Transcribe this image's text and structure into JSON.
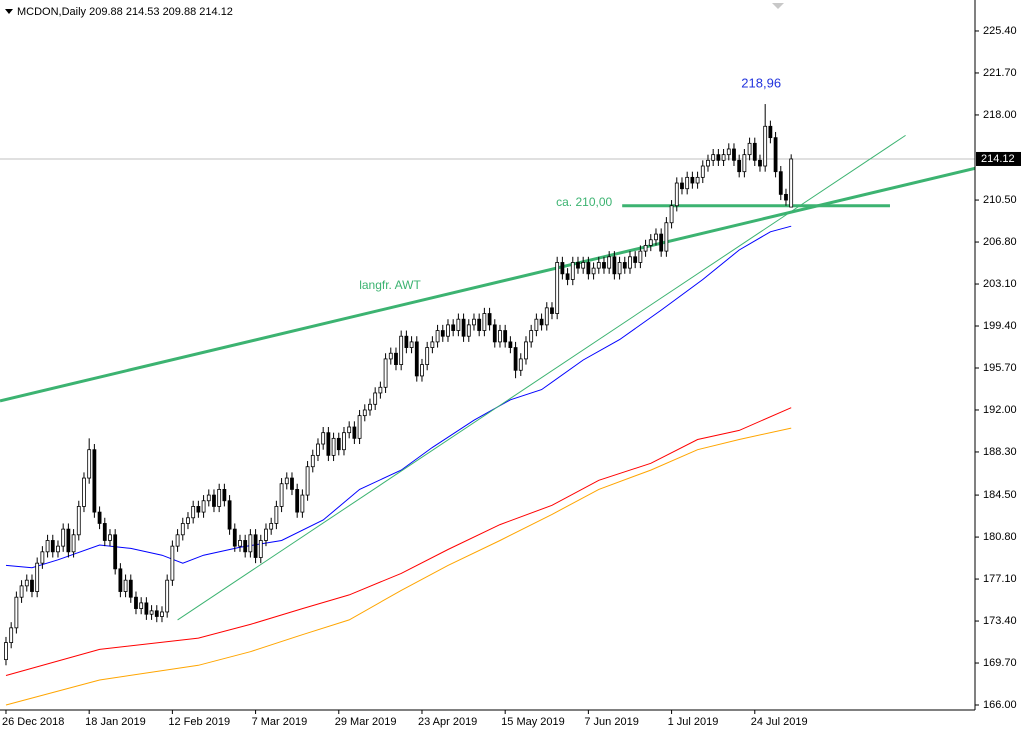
{
  "chart_data": {
    "type": "candlestick",
    "title": "MCDON,Daily",
    "categories": [
      "26 Dec 2018",
      null,
      null,
      null,
      null,
      null,
      null,
      null,
      null,
      null,
      null,
      null,
      null,
      null,
      null,
      null,
      "18 Jan 2019",
      null,
      null,
      null,
      null,
      null,
      null,
      null,
      null,
      null,
      null,
      null,
      null,
      null,
      null,
      null,
      "12 Feb 2019",
      null,
      null,
      null,
      null,
      null,
      null,
      null,
      null,
      null,
      null,
      null,
      null,
      null,
      null,
      null,
      "7 Mar 2019",
      null,
      null,
      null,
      null,
      null,
      null,
      null,
      null,
      null,
      null,
      null,
      null,
      null,
      null,
      null,
      "29 Mar 2019",
      null,
      null,
      null,
      null,
      null,
      null,
      null,
      null,
      null,
      null,
      null,
      null,
      null,
      null,
      null,
      "23 Apr 2019",
      null,
      null,
      null,
      null,
      null,
      null,
      null,
      null,
      null,
      null,
      null,
      null,
      null,
      null,
      null,
      "15 May 2019",
      null,
      null,
      null,
      null,
      null,
      null,
      null,
      null,
      null,
      null,
      null,
      null,
      null,
      null,
      null,
      "7 Jun 2019",
      null,
      null,
      null,
      null,
      null,
      null,
      null,
      null,
      null,
      null,
      null,
      null,
      null,
      null,
      null,
      "1 Jul 2019",
      null,
      null,
      null,
      null,
      null,
      null,
      null,
      null,
      null,
      null,
      null,
      null,
      null,
      null,
      null,
      "24 Jul 2019",
      null,
      null,
      null,
      null,
      null,
      null,
      null
    ],
    "open": [
      170.0,
      171.5,
      172.8,
      175.5,
      176.5,
      177.0,
      176.0,
      178.5,
      179.5,
      180.5,
      179.5,
      180.0,
      181.5,
      179.5,
      181.0,
      183.5,
      186.0,
      188.5,
      183.0,
      182.0,
      180.5,
      181.0,
      178.0,
      176.0,
      177.0,
      175.5,
      174.5,
      175.0,
      174.0,
      174.3,
      173.8,
      174.2,
      177.0,
      180.0,
      181.0,
      182.0,
      182.5,
      183.5,
      183.0,
      184.0,
      184.5,
      183.5,
      185.0,
      184.0,
      181.5,
      180.0,
      180.5,
      179.5,
      181.0,
      179.0,
      180.5,
      181.5,
      182.0,
      183.5,
      185.5,
      186.0,
      185.0,
      183.0,
      184.5,
      187.0,
      188.0,
      189.0,
      190.0,
      188.0,
      189.5,
      188.5,
      190.0,
      190.5,
      189.5,
      191.5,
      192.0,
      192.5,
      193.5,
      194.0,
      196.5,
      197.0,
      196.0,
      198.5,
      197.5,
      198.0,
      195.0,
      196.0,
      197.5,
      198.0,
      199.0,
      198.5,
      199.5,
      199.0,
      200.0,
      198.5,
      199.5,
      200.0,
      199.0,
      200.5,
      199.5,
      198.0,
      199.0,
      198.0,
      197.5,
      195.5,
      196.5,
      198.0,
      199.0,
      200.0,
      199.5,
      201.0,
      200.5,
      205.0,
      204.0,
      203.5,
      205.0,
      204.5,
      205.0,
      204.0,
      204.5,
      205.0,
      204.5,
      205.5,
      204.0,
      205.0,
      204.5,
      205.5,
      205.0,
      206.0,
      206.5,
      207.0,
      207.5,
      206.0,
      208.5,
      210.0,
      212.0,
      211.5,
      212.5,
      212.0,
      212.5,
      213.5,
      214.0,
      214.5,
      214.0,
      214.5,
      215.0,
      214.0,
      213.0,
      214.5,
      215.5,
      214.0,
      213.5,
      217.0,
      216.0,
      213.0,
      211.0,
      209.88
    ],
    "high": [
      172.0,
      173.3,
      176.0,
      177.0,
      177.5,
      177.5,
      179.0,
      180.0,
      181.0,
      181.0,
      180.5,
      182.0,
      182.0,
      181.5,
      184.0,
      186.5,
      189.5,
      189.0,
      183.5,
      182.5,
      181.5,
      181.5,
      178.5,
      177.5,
      177.5,
      176.0,
      175.5,
      175.5,
      174.8,
      174.8,
      174.7,
      177.5,
      180.5,
      181.5,
      182.5,
      183.0,
      184.0,
      184.0,
      184.5,
      185.0,
      185.0,
      185.5,
      185.5,
      184.5,
      182.0,
      181.0,
      181.0,
      181.5,
      181.5,
      181.0,
      182.0,
      182.5,
      184.0,
      186.0,
      186.5,
      186.5,
      185.5,
      185.0,
      187.5,
      188.5,
      189.5,
      190.5,
      190.5,
      190.0,
      190.0,
      190.5,
      191.0,
      191.0,
      192.0,
      192.5,
      193.0,
      194.0,
      194.5,
      197.0,
      197.5,
      197.5,
      199.0,
      199.0,
      198.5,
      198.5,
      196.5,
      198.0,
      198.5,
      199.5,
      199.5,
      200.0,
      200.0,
      200.5,
      200.5,
      200.0,
      200.5,
      200.5,
      201.0,
      201.0,
      200.0,
      199.5,
      199.5,
      198.5,
      198.0,
      197.0,
      198.5,
      199.5,
      200.5,
      200.5,
      201.5,
      201.5,
      205.5,
      205.5,
      204.5,
      205.5,
      205.5,
      205.5,
      205.5,
      205.0,
      205.5,
      205.5,
      206.0,
      206.0,
      205.5,
      205.5,
      206.0,
      206.0,
      206.5,
      207.0,
      207.5,
      208.0,
      208.0,
      209.0,
      210.5,
      212.5,
      212.5,
      213.0,
      213.0,
      213.0,
      214.0,
      214.5,
      215.0,
      215.0,
      215.0,
      215.5,
      215.5,
      214.5,
      215.0,
      216.0,
      216.0,
      214.5,
      218.96,
      217.5,
      216.5,
      213.5,
      211.5,
      214.53
    ],
    "low": [
      169.5,
      171.0,
      172.3,
      175.0,
      176.0,
      175.5,
      175.5,
      178.0,
      179.0,
      179.0,
      179.0,
      179.5,
      179.0,
      179.0,
      180.5,
      183.0,
      185.5,
      182.5,
      181.5,
      180.0,
      180.0,
      177.5,
      175.5,
      175.5,
      175.0,
      174.0,
      174.0,
      173.5,
      173.5,
      173.3,
      173.3,
      173.7,
      176.5,
      179.5,
      180.5,
      181.5,
      182.0,
      182.5,
      182.5,
      183.5,
      183.0,
      183.0,
      183.5,
      181.0,
      179.5,
      179.5,
      179.0,
      179.0,
      178.5,
      178.5,
      180.0,
      181.0,
      181.5,
      183.0,
      185.0,
      184.5,
      182.5,
      182.5,
      184.0,
      186.5,
      187.5,
      188.5,
      187.5,
      187.5,
      188.0,
      188.0,
      189.5,
      189.0,
      189.0,
      191.0,
      191.5,
      192.0,
      193.0,
      193.5,
      196.0,
      195.5,
      195.5,
      197.0,
      197.0,
      194.5,
      194.5,
      195.5,
      197.0,
      197.5,
      198.0,
      198.0,
      198.5,
      198.5,
      198.0,
      198.0,
      199.0,
      198.5,
      198.5,
      199.0,
      197.5,
      197.5,
      197.5,
      197.0,
      194.8,
      195.0,
      196.0,
      197.5,
      198.5,
      199.0,
      199.0,
      200.0,
      200.0,
      203.5,
      203.0,
      203.0,
      204.0,
      204.0,
      203.5,
      203.5,
      204.0,
      204.0,
      204.0,
      203.5,
      203.5,
      204.0,
      204.0,
      204.5,
      204.5,
      205.5,
      206.0,
      206.5,
      205.5,
      205.5,
      208.0,
      209.5,
      211.0,
      211.0,
      211.5,
      211.5,
      212.0,
      213.0,
      213.5,
      213.5,
      213.5,
      214.0,
      213.5,
      212.5,
      212.5,
      214.0,
      213.5,
      213.0,
      213.0,
      215.5,
      212.5,
      210.5,
      210.0,
      209.88
    ],
    "close": [
      171.5,
      172.8,
      175.5,
      176.5,
      177.0,
      176.0,
      178.5,
      179.5,
      180.5,
      179.5,
      180.0,
      181.5,
      179.5,
      181.0,
      183.5,
      186.0,
      188.5,
      183.0,
      182.0,
      180.5,
      181.0,
      178.0,
      176.0,
      177.0,
      175.5,
      174.5,
      175.0,
      174.0,
      174.3,
      173.8,
      174.2,
      177.0,
      180.0,
      181.0,
      182.0,
      182.5,
      183.5,
      183.0,
      184.0,
      184.5,
      183.5,
      185.0,
      184.0,
      181.5,
      180.0,
      180.5,
      179.5,
      181.0,
      179.0,
      180.5,
      181.5,
      182.0,
      183.5,
      185.5,
      186.0,
      185.0,
      183.0,
      184.5,
      187.0,
      188.0,
      189.0,
      190.0,
      188.0,
      189.5,
      188.5,
      190.0,
      190.5,
      189.5,
      191.5,
      192.0,
      192.5,
      193.5,
      194.0,
      196.5,
      197.0,
      196.0,
      198.5,
      197.5,
      198.0,
      195.0,
      196.0,
      197.5,
      198.0,
      199.0,
      198.5,
      199.5,
      199.0,
      200.0,
      198.5,
      199.5,
      200.0,
      199.0,
      200.5,
      199.5,
      198.0,
      199.0,
      198.0,
      197.5,
      195.5,
      196.5,
      198.0,
      199.0,
      200.0,
      199.5,
      201.0,
      200.5,
      205.0,
      204.0,
      203.5,
      205.0,
      204.5,
      205.0,
      204.0,
      204.5,
      205.0,
      204.5,
      205.5,
      204.0,
      205.0,
      204.5,
      205.5,
      205.0,
      206.0,
      206.5,
      207.0,
      207.5,
      206.0,
      208.5,
      210.0,
      212.0,
      211.5,
      212.5,
      212.0,
      212.5,
      213.5,
      214.0,
      214.5,
      214.0,
      214.5,
      215.0,
      214.0,
      213.0,
      214.5,
      215.5,
      214.0,
      213.5,
      217.0,
      216.0,
      213.0,
      211.0,
      210.5,
      214.12
    ],
    "candle_color": "#000000",
    "xlim": [
      -1.15,
      186.35
    ],
    "ylim": [
      165.56,
      228.13
    ],
    "yticks": [
      {
        "value": 225.4,
        "label": "225.40"
      },
      {
        "value": 221.7,
        "label": "221.70"
      },
      {
        "value": 218,
        "label": "218.00"
      },
      {
        "value": 210.5,
        "label": "210.50"
      },
      {
        "value": 206.8,
        "label": "206.80"
      },
      {
        "value": 203.1,
        "label": "203.10"
      },
      {
        "value": 199.4,
        "label": "199.40"
      },
      {
        "value": 195.7,
        "label": "195.70"
      },
      {
        "value": 192,
        "label": "192.00"
      },
      {
        "value": 188.3,
        "label": "188.30"
      },
      {
        "value": 184.5,
        "label": "184.50"
      },
      {
        "value": 180.8,
        "label": "180.80"
      },
      {
        "value": 177.1,
        "label": "177.10"
      },
      {
        "value": 173.4,
        "label": "173.40"
      },
      {
        "value": 169.7,
        "label": "169.70"
      },
      {
        "value": 166,
        "label": "166.00"
      }
    ],
    "series": [
      {
        "color": "#0000ff",
        "x": [
          0,
          5,
          10,
          18,
          24,
          30,
          34,
          38,
          45,
          53,
          61,
          68,
          76,
          82,
          90,
          97,
          103,
          111,
          118,
          126,
          134,
          141,
          147,
          151
        ],
        "values": [
          178.3,
          178.1,
          178.8,
          180.1,
          179.8,
          179.2,
          178.5,
          179.2,
          179.9,
          180.5,
          182.3,
          185.0,
          186.7,
          188.7,
          191.1,
          192.9,
          193.8,
          196.4,
          198.2,
          200.8,
          203.5,
          206.1,
          207.7,
          208.2
        ]
      },
      {
        "color": "#ff0000",
        "x": [
          0,
          18,
          37,
          47,
          57,
          66,
          76,
          85,
          95,
          105,
          114,
          124,
          133,
          141,
          151
        ],
        "values": [
          168.6,
          170.9,
          171.9,
          173.1,
          174.5,
          175.7,
          177.6,
          179.7,
          181.9,
          183.6,
          185.8,
          187.3,
          189.4,
          190.2,
          192.2
        ]
      },
      {
        "color": "#ffa500",
        "x": [
          0,
          18,
          37,
          47,
          57,
          66,
          76,
          85,
          95,
          105,
          114,
          124,
          133,
          141,
          151
        ],
        "values": [
          166.0,
          168.2,
          169.5,
          170.7,
          172.2,
          173.5,
          176.1,
          178.3,
          180.5,
          182.8,
          185.0,
          186.7,
          188.5,
          189.4,
          190.4
        ]
      }
    ],
    "lines": [
      {
        "label": "langfr. AWT",
        "color": "#3cb371",
        "width": 3,
        "x": [
          -1.15,
          186.35
        ],
        "y": [
          192.8,
          213.3
        ]
      },
      {
        "color": "#3cb371",
        "width": 1,
        "x": [
          33,
          173
        ],
        "y": [
          173.5,
          216.2
        ]
      },
      {
        "label": "ca. 210,00",
        "color": "#3cb371",
        "width": 3,
        "x": [
          118.5,
          170
        ],
        "y": [
          210.0,
          210.0
        ]
      }
    ],
    "peak_label": "218,96",
    "peak_color": "#2233dd",
    "price_line": true
  }
}
